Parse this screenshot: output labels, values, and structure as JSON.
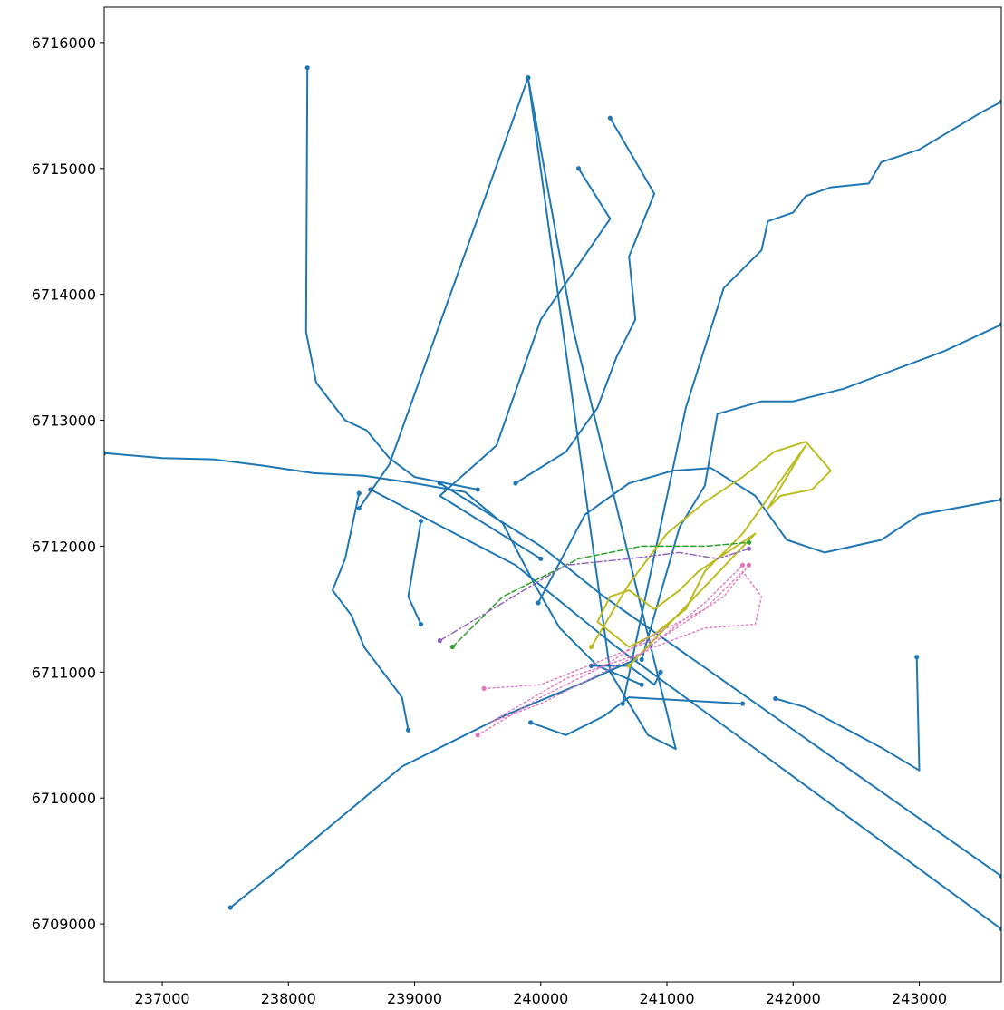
{
  "chart_data": {
    "type": "line",
    "title": "",
    "xlabel": "",
    "ylabel": "",
    "xlim": [
      236540,
      243650
    ],
    "ylim": [
      6708540,
      6716280
    ],
    "x_ticks": [
      237000,
      238000,
      239000,
      240000,
      241000,
      242000,
      243000
    ],
    "y_ticks": [
      6709000,
      6710000,
      6711000,
      6712000,
      6713000,
      6714000,
      6715000,
      6716000
    ],
    "x_tick_labels": [
      "237000",
      "238000",
      "239000",
      "240000",
      "241000",
      "242000",
      "243000"
    ],
    "y_tick_labels": [
      "6709000",
      "6710000",
      "6711000",
      "6712000",
      "6713000",
      "6714000",
      "6715000",
      "6716000"
    ],
    "grid": false,
    "legend": "none",
    "series": [
      {
        "color": "#1f77b4",
        "style": "solid",
        "tracks": [
          [
            [
              236540,
              6712740
            ],
            [
              237000,
              6712700
            ],
            [
              237400,
              6712690
            ],
            [
              237800,
              6712640
            ],
            [
              238200,
              6712580
            ],
            [
              238600,
              6712560
            ],
            [
              239000,
              6712500
            ],
            [
              239400,
              6712430
            ],
            [
              239700,
              6712180
            ],
            [
              239950,
              6711700
            ],
            [
              240150,
              6711350
            ],
            [
              240450,
              6711050
            ],
            [
              240800,
              6710900
            ]
          ],
          [
            [
              238150,
              6715800
            ],
            [
              238140,
              6713700
            ],
            [
              238220,
              6713300
            ],
            [
              238450,
              6713000
            ],
            [
              238620,
              6712920
            ],
            [
              238800,
              6712700
            ],
            [
              239000,
              6712550
            ],
            [
              239500,
              6712450
            ]
          ],
          [
            [
              237540,
              6709130
            ],
            [
              238000,
              6709500
            ],
            [
              238900,
              6710250
            ],
            [
              239700,
              6710650
            ],
            [
              240300,
              6710900
            ],
            [
              240750,
              6711100
            ]
          ],
          [
            [
              241860,
              6710790
            ],
            [
              242100,
              6710720
            ],
            [
              242700,
              6710400
            ],
            [
              243000,
              6710220
            ],
            [
              242980,
              6711120
            ]
          ],
          [
            [
              239900,
              6715720
            ],
            [
              238800,
              6712650
            ],
            [
              238560,
              6712300
            ]
          ],
          [
            [
              239900,
              6715720
            ],
            [
              240550,
              6711000
            ],
            [
              240850,
              6710500
            ],
            [
              241070,
              6710390
            ],
            [
              240250,
              6713750
            ],
            [
              239900,
              6715720
            ]
          ],
          [
            [
              239920,
              6710600
            ],
            [
              240200,
              6710500
            ],
            [
              240500,
              6710650
            ],
            [
              240700,
              6710800
            ],
            [
              241600,
              6710750
            ]
          ],
          [
            [
              240650,
              6710750
            ],
            [
              241150,
              6713100
            ],
            [
              241450,
              6714050
            ],
            [
              241750,
              6714350
            ],
            [
              241800,
              6714580
            ],
            [
              242000,
              6714650
            ],
            [
              242100,
              6714780
            ],
            [
              242300,
              6714850
            ],
            [
              242600,
              6714880
            ],
            [
              242700,
              6715050
            ],
            [
              243000,
              6715150
            ],
            [
              243500,
              6715450
            ],
            [
              243650,
              6715530
            ]
          ],
          [
            [
              240800,
              6711100
            ],
            [
              241100,
              6712150
            ],
            [
              241300,
              6712480
            ],
            [
              241400,
              6713050
            ],
            [
              241750,
              6713150
            ],
            [
              242000,
              6713150
            ],
            [
              242400,
              6713250
            ],
            [
              242800,
              6713400
            ],
            [
              243200,
              6713550
            ],
            [
              243650,
              6713760
            ]
          ],
          [
            [
              239980,
              6711550
            ],
            [
              240350,
              6712250
            ],
            [
              240700,
              6712500
            ],
            [
              241050,
              6712600
            ],
            [
              241350,
              6712620
            ],
            [
              241700,
              6712400
            ],
            [
              241950,
              6712050
            ],
            [
              242250,
              6711950
            ],
            [
              242700,
              6712050
            ],
            [
              243000,
              6712250
            ],
            [
              243650,
              6712370
            ]
          ],
          [
            [
              239200,
              6712500
            ],
            [
              240000,
              6712000
            ],
            [
              240500,
              6711600
            ],
            [
              243650,
              6709380
            ]
          ],
          [
            [
              238650,
              6712450
            ],
            [
              239800,
              6711850
            ],
            [
              240600,
              6711200
            ],
            [
              243650,
              6708960
            ]
          ],
          [
            [
              240400,
              6711050
            ],
            [
              240700,
              6711050
            ],
            [
              240900,
              6710900
            ],
            [
              240950,
              6711000
            ]
          ],
          [
            [
              238560,
              6712420
            ],
            [
              238450,
              6711900
            ],
            [
              238350,
              6711650
            ],
            [
              238500,
              6711450
            ],
            [
              238600,
              6711200
            ],
            [
              238750,
              6711000
            ],
            [
              238900,
              6710800
            ],
            [
              238950,
              6710540
            ]
          ],
          [
            [
              239050,
              6712200
            ],
            [
              239000,
              6711900
            ],
            [
              238950,
              6711600
            ],
            [
              239050,
              6711380
            ]
          ],
          [
            [
              239800,
              6712500
            ],
            [
              240200,
              6712750
            ],
            [
              240450,
              6713100
            ],
            [
              240600,
              6713500
            ],
            [
              240750,
              6713800
            ],
            [
              240700,
              6714300
            ],
            [
              240900,
              6714800
            ],
            [
              240550,
              6715400
            ]
          ],
          [
            [
              240300,
              6715000
            ],
            [
              240550,
              6714600
            ],
            [
              240000,
              6713800
            ],
            [
              239650,
              6712800
            ],
            [
              239200,
              6712400
            ],
            [
              240000,
              6711900
            ]
          ]
        ]
      },
      {
        "color": "#bcbd22",
        "style": "solid",
        "tracks": [
          [
            [
              240400,
              6711200
            ],
            [
              240700,
              6711700
            ],
            [
              241000,
              6712100
            ],
            [
              241300,
              6712350
            ],
            [
              241600,
              6712550
            ],
            [
              241850,
              6712750
            ],
            [
              242100,
              6712830
            ],
            [
              242300,
              6712600
            ],
            [
              242150,
              6712450
            ],
            [
              241900,
              6712400
            ],
            [
              241800,
              6712300
            ],
            [
              242100,
              6712800
            ],
            [
              241600,
              6712100
            ],
            [
              241300,
              6711800
            ],
            [
              241150,
              6711500
            ],
            [
              240900,
              6711300
            ],
            [
              240700,
              6711200
            ],
            [
              240450,
              6711400
            ],
            [
              240550,
              6711600
            ],
            [
              240700,
              6711650
            ],
            [
              240900,
              6711500
            ],
            [
              241100,
              6711650
            ],
            [
              241250,
              6711800
            ],
            [
              241550,
              6712000
            ],
            [
              241700,
              6712100
            ],
            [
              240700,
              6711050
            ]
          ]
        ]
      },
      {
        "color": "#2ca02c",
        "style": "dashed",
        "tracks": [
          [
            [
              239300,
              6711200
            ],
            [
              239700,
              6711600
            ],
            [
              240300,
              6711900
            ],
            [
              240800,
              6712000
            ],
            [
              241300,
              6712000
            ],
            [
              241650,
              6712030
            ]
          ]
        ]
      },
      {
        "color": "#9467bd",
        "style": "dashdot",
        "tracks": [
          [
            [
              239200,
              6711250
            ],
            [
              239700,
              6711550
            ],
            [
              240200,
              6711850
            ],
            [
              240700,
              6711900
            ],
            [
              241100,
              6711950
            ],
            [
              241400,
              6711900
            ],
            [
              241650,
              6711980
            ]
          ]
        ]
      },
      {
        "color": "#e377c2",
        "style": "dotted",
        "tracks": [
          [
            [
              239500,
              6710500
            ],
            [
              240000,
              6710800
            ],
            [
              240500,
              6711050
            ],
            [
              240900,
              6711300
            ],
            [
              241300,
              6711500
            ],
            [
              241600,
              6711800
            ],
            [
              241750,
              6711600
            ],
            [
              241700,
              6711380
            ],
            [
              241300,
              6711350
            ],
            [
              240900,
              6711200
            ],
            [
              240500,
              6711000
            ],
            [
              240000,
              6710750
            ],
            [
              239600,
              6710600
            ],
            [
              240200,
              6710950
            ],
            [
              240800,
              6711150
            ],
            [
              241300,
              6711550
            ],
            [
              241600,
              6711850
            ]
          ],
          [
            [
              239550,
              6710870
            ],
            [
              240000,
              6710900
            ],
            [
              240500,
              6711100
            ],
            [
              241000,
              6711300
            ],
            [
              241450,
              6711600
            ],
            [
              241650,
              6711850
            ]
          ]
        ]
      }
    ]
  }
}
